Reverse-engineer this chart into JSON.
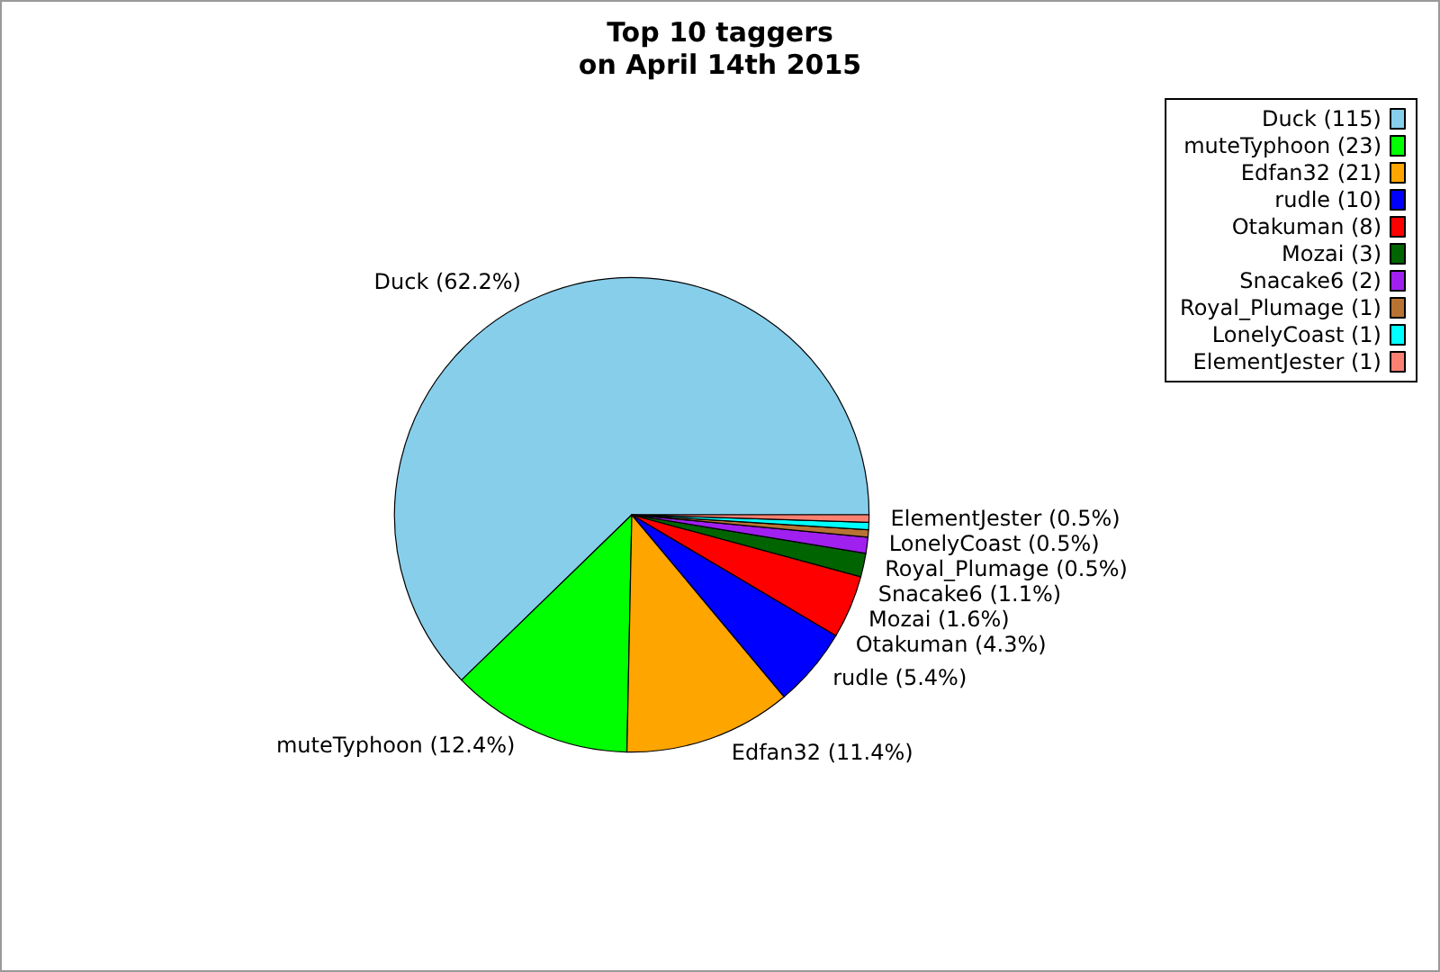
{
  "chart_data": {
    "type": "pie",
    "title": "Top 10 taggers\non April 14th 2015",
    "categories": [
      "Duck (115)",
      "muteTyphoon (23)",
      "Edfan32 (21)",
      "rudle (10)",
      "Otakuman (8)",
      "Mozai (3)",
      "Snacake6 (2)",
      "Royal_Plumage (1)",
      "LonelyCoast (1)",
      "ElementJester (1)"
    ],
    "values": [
      62.2,
      12.4,
      11.4,
      5.4,
      4.3,
      1.6,
      1.1,
      0.5,
      0.5,
      0.5
    ],
    "colors": [
      "#87ceeb",
      "#00ff00",
      "#ffa500",
      "#0000ff",
      "#ff0000",
      "#006400",
      "#a020f0",
      "#b87333",
      "#00ffff",
      "#fa8072"
    ],
    "value_labels": [
      "Duck (62.2%)",
      "muteTyphoon (12.4%)",
      "Edfan32 (11.4%)",
      "rudle (5.4%)",
      "Otakuman (4.3%)",
      "Mozai (1.6%)",
      "Snacake6 (1.1%)",
      "Royal_Plumage (0.5%)",
      "LonelyCoast (0.5%)",
      "ElementJester (0.5%)"
    ],
    "legend": "top right"
  }
}
